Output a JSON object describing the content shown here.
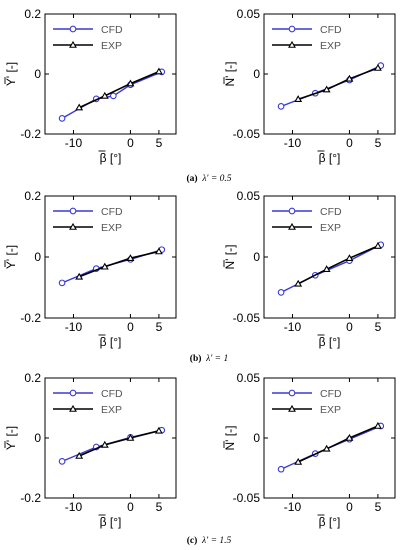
{
  "chart_data": [
    {
      "type": "line",
      "id": "a-left",
      "row": 0,
      "col": 0,
      "ylabel": "Y' [-]",
      "xlabel": "β [°]",
      "xlim": [
        -15,
        8
      ],
      "ylim": [
        -0.2,
        0.2
      ],
      "xticks": [
        "-10",
        "0",
        "5"
      ],
      "xtick_values": [
        -10,
        0,
        5
      ],
      "yticks": [
        "-0.2",
        "0",
        "0.2"
      ],
      "ytick_values": [
        -0.2,
        0,
        0.2
      ],
      "legend": "top-left",
      "grid": false,
      "series": [
        {
          "name": "CFD",
          "marker": "circle",
          "color": "#3a3ad6",
          "x": [
            -12,
            -6,
            -3,
            0,
            5.5
          ],
          "y": [
            -0.148,
            -0.083,
            -0.073,
            -0.036,
            0.007
          ]
        },
        {
          "name": "EXP",
          "marker": "triangle",
          "color": "#000000",
          "x": [
            -9,
            -4.5,
            0,
            5
          ],
          "y": [
            -0.112,
            -0.073,
            -0.032,
            0.008
          ]
        }
      ]
    },
    {
      "type": "line",
      "id": "a-right",
      "row": 0,
      "col": 1,
      "ylabel": "N' [-]",
      "xlabel": "β [°]",
      "xlim": [
        -15,
        8
      ],
      "ylim": [
        -0.05,
        0.05
      ],
      "xticks": [
        "-10",
        "0",
        "5"
      ],
      "xtick_values": [
        -10,
        0,
        5
      ],
      "yticks": [
        "-0.05",
        "0",
        "0.05"
      ],
      "ytick_values": [
        -0.05,
        0,
        0.05
      ],
      "legend": "top-left",
      "grid": false,
      "series": [
        {
          "name": "CFD",
          "marker": "circle",
          "color": "#3a3ad6",
          "x": [
            -12,
            -6,
            0,
            5.5
          ],
          "y": [
            -0.027,
            -0.016,
            -0.005,
            0.007
          ]
        },
        {
          "name": "EXP",
          "marker": "triangle",
          "color": "#000000",
          "x": [
            -9,
            -4,
            0,
            5
          ],
          "y": [
            -0.021,
            -0.013,
            -0.004,
            0.005
          ]
        }
      ]
    },
    {
      "type": "line",
      "id": "b-left",
      "row": 1,
      "col": 0,
      "ylabel": "Y' [-]",
      "xlabel": "β [°]",
      "xlim": [
        -15,
        8
      ],
      "ylim": [
        -0.2,
        0.2
      ],
      "xticks": [
        "-10",
        "0",
        "5"
      ],
      "xtick_values": [
        -10,
        0,
        5
      ],
      "yticks": [
        "-0.2",
        "0",
        "0.2"
      ],
      "ytick_values": [
        -0.2,
        0,
        0.2
      ],
      "legend": "top-left",
      "grid": false,
      "series": [
        {
          "name": "CFD",
          "marker": "circle",
          "color": "#3a3ad6",
          "x": [
            -12,
            -6,
            0,
            5.5
          ],
          "y": [
            -0.085,
            -0.038,
            -0.008,
            0.024
          ]
        },
        {
          "name": "EXP",
          "marker": "triangle",
          "color": "#000000",
          "x": [
            -9,
            -4.5,
            0,
            5
          ],
          "y": [
            -0.065,
            -0.032,
            -0.004,
            0.018
          ]
        }
      ]
    },
    {
      "type": "line",
      "id": "b-right",
      "row": 1,
      "col": 1,
      "ylabel": "N' [-]",
      "xlabel": "β [°]",
      "xlim": [
        -15,
        8
      ],
      "ylim": [
        -0.05,
        0.05
      ],
      "xticks": [
        "-10",
        "0",
        "5"
      ],
      "xtick_values": [
        -10,
        0,
        5
      ],
      "yticks": [
        "-0.05",
        "0",
        "0.05"
      ],
      "ytick_values": [
        -0.05,
        0,
        0.05
      ],
      "legend": "top-left",
      "grid": false,
      "series": [
        {
          "name": "CFD",
          "marker": "circle",
          "color": "#3a3ad6",
          "x": [
            -12,
            -6,
            0,
            5.5
          ],
          "y": [
            -0.029,
            -0.015,
            -0.003,
            0.01
          ]
        },
        {
          "name": "EXP",
          "marker": "triangle",
          "color": "#000000",
          "x": [
            -9,
            -4,
            0,
            5
          ],
          "y": [
            -0.022,
            -0.01,
            -0.001,
            0.009
          ]
        }
      ]
    },
    {
      "type": "line",
      "id": "c-left",
      "row": 2,
      "col": 0,
      "ylabel": "Y' [-]",
      "xlabel": "β [°]",
      "xlim": [
        -15,
        8
      ],
      "ylim": [
        -0.2,
        0.2
      ],
      "xticks": [
        "-10",
        "0",
        "5"
      ],
      "xtick_values": [
        -10,
        0,
        5
      ],
      "yticks": [
        "-0.2",
        "0",
        "0.2"
      ],
      "ytick_values": [
        -0.2,
        0,
        0.2
      ],
      "legend": "top-left",
      "grid": false,
      "series": [
        {
          "name": "CFD",
          "marker": "circle",
          "color": "#3a3ad6",
          "x": [
            -12,
            -6,
            0,
            5.5
          ],
          "y": [
            -0.078,
            -0.03,
            0.002,
            0.026
          ]
        },
        {
          "name": "EXP",
          "marker": "triangle",
          "color": "#000000",
          "x": [
            -9,
            -4.5,
            0,
            5
          ],
          "y": [
            -0.06,
            -0.023,
            0.0,
            0.024
          ]
        }
      ]
    },
    {
      "type": "line",
      "id": "c-right",
      "row": 2,
      "col": 1,
      "ylabel": "N' [-]",
      "xlabel": "β [°]",
      "xlim": [
        -15,
        8
      ],
      "ylim": [
        -0.05,
        0.05
      ],
      "xticks": [
        "-10",
        "0",
        "5"
      ],
      "xtick_values": [
        -10,
        0,
        5
      ],
      "yticks": [
        "-0.05",
        "0",
        "0.05"
      ],
      "ytick_values": [
        -0.05,
        0,
        0.05
      ],
      "legend": "top-left",
      "grid": false,
      "series": [
        {
          "name": "CFD",
          "marker": "circle",
          "color": "#3a3ad6",
          "x": [
            -12,
            -6,
            0,
            5.5
          ],
          "y": [
            -0.026,
            -0.013,
            -0.001,
            0.01
          ]
        },
        {
          "name": "EXP",
          "marker": "triangle",
          "color": "#000000",
          "x": [
            -9,
            -4,
            0,
            5
          ],
          "y": [
            -0.02,
            -0.009,
            0.0,
            0.01
          ]
        }
      ]
    }
  ],
  "captions": [
    {
      "label": "(a)",
      "param": "λ' = 0.5"
    },
    {
      "label": "(b)",
      "param": "λ' = 1"
    },
    {
      "label": "(c)",
      "param": "λ' = 1.5"
    }
  ]
}
